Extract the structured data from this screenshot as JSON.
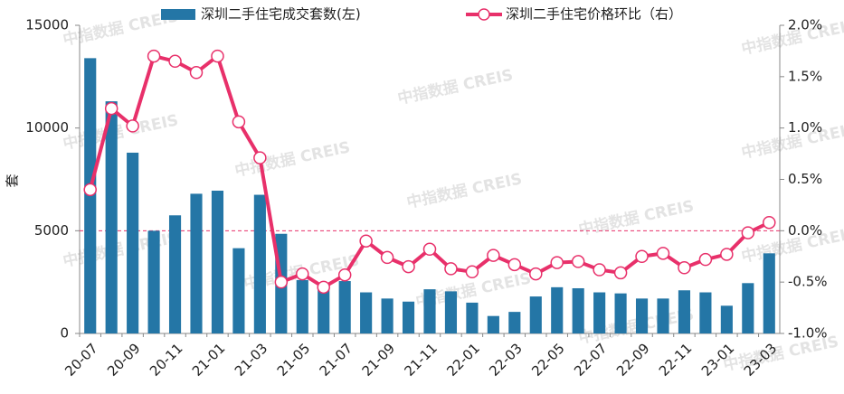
{
  "chart_data": {
    "type": "bar_line",
    "watermark": "中指数据 CREIS",
    "y_label": "套",
    "legend": "top",
    "categories": [
      "20-07",
      null,
      "20-09",
      null,
      "20-11",
      null,
      "21-01",
      null,
      "21-03",
      null,
      "21-05",
      null,
      "21-07",
      null,
      "21-09",
      null,
      "21-11",
      null,
      "22-01",
      null,
      "22-03",
      null,
      "22-05",
      null,
      "22-07",
      null,
      "22-09",
      null,
      "22-11",
      null,
      "23-01",
      null,
      "23-03"
    ],
    "series": [
      {
        "name": "深圳二手住宅成交套数(左)",
        "type": "bar",
        "color": "#2476a6",
        "values": [
          13400,
          11300,
          8800,
          5000,
          5750,
          6800,
          6950,
          4150,
          6750,
          4850,
          2600,
          2450,
          2550,
          2000,
          1700,
          1550,
          2150,
          2050,
          1500,
          850,
          1050,
          1800,
          2250,
          2200,
          2000,
          1950,
          1700,
          1700,
          2100,
          2000,
          1350,
          2450,
          3900
        ]
      },
      {
        "name": "深圳二手住宅价格环比（右）",
        "type": "line",
        "axis": "y2",
        "color": "#e8306a",
        "values": [
          0.4,
          1.19,
          1.02,
          1.7,
          1.65,
          1.54,
          1.7,
          1.06,
          0.71,
          -0.5,
          -0.42,
          -0.55,
          -0.43,
          -0.1,
          -0.26,
          -0.35,
          -0.18,
          -0.37,
          -0.4,
          -0.24,
          -0.33,
          -0.42,
          -0.31,
          -0.3,
          -0.38,
          -0.41,
          -0.25,
          -0.22,
          -0.36,
          -0.28,
          -0.23,
          -0.02,
          0.08
        ]
      }
    ],
    "ylim": [
      0,
      15000
    ],
    "yticks": [
      0,
      5000,
      10000,
      15000
    ],
    "y2lim": [
      -1,
      2
    ],
    "y2ticks": [
      {
        "value": -1,
        "label": "-1.0%"
      },
      {
        "value": -0.5,
        "label": "-0.5%"
      },
      {
        "value": 0,
        "label": "0.0%"
      },
      {
        "value": 0.5,
        "label": "0.5%"
      },
      {
        "value": 1,
        "label": "1.0%"
      },
      {
        "value": 1.5,
        "label": "1.5%"
      },
      {
        "value": 2,
        "label": "2.0%"
      }
    ],
    "grid": false
  }
}
